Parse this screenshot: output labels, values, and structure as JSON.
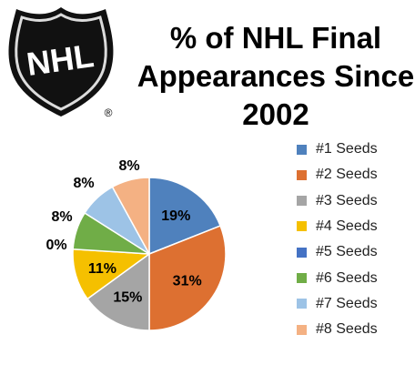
{
  "logo": {
    "text": "NHL",
    "registered": "®"
  },
  "chart_data": {
    "type": "pie",
    "title_lines": [
      "% of NHL Final",
      "Appearances Since",
      "2002"
    ],
    "categories": [
      "#1 Seeds",
      "#2 Seeds",
      "#3 Seeds",
      "#4 Seeds",
      "#5 Seeds",
      "#6 Seeds",
      "#7 Seeds",
      "#8 Seeds"
    ],
    "values": [
      19,
      31,
      15,
      11,
      0,
      8,
      8,
      8
    ],
    "data_labels": [
      "19%",
      "31%",
      "15%",
      "11%",
      "0%",
      "8%",
      "8%",
      "8%"
    ],
    "colors": [
      "#4f81bd",
      "#dd7031",
      "#a5a5a5",
      "#f5c000",
      "#4472c4",
      "#70ad47",
      "#9dc3e6",
      "#f4b183"
    ],
    "legend_position": "right"
  }
}
